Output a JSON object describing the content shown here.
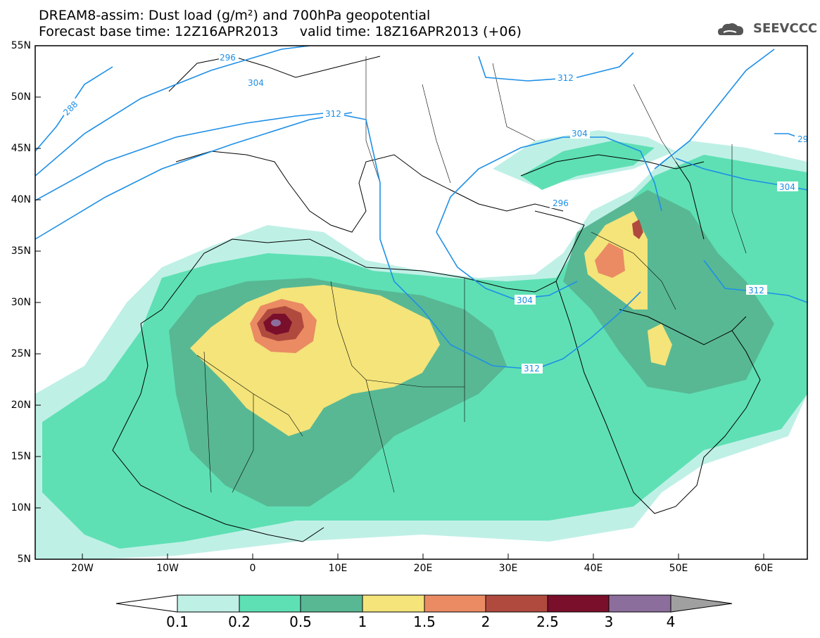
{
  "title_line1": "DREAM8-assim: Dust load (g/m²) and 700hPa geopotential",
  "title_line2": "Forecast base time: 12Z16APR2013     valid time: 18Z16APR2013 (+06)",
  "logo_text": "SEEVCCC",
  "logo_icon": "cloud-icon",
  "axes": {
    "lat_ticks": [
      "55N",
      "50N",
      "45N",
      "40N",
      "35N",
      "30N",
      "25N",
      "20N",
      "15N",
      "10N",
      "5N"
    ],
    "lon_ticks": [
      "20W",
      "10W",
      "0",
      "10E",
      "20E",
      "30E",
      "40E",
      "50E",
      "60E"
    ]
  },
  "colorbar": {
    "labels": [
      "0.1",
      "0.2",
      "0.5",
      "1",
      "1.5",
      "2",
      "2.5",
      "3",
      "4"
    ],
    "colors": [
      "#ffffff",
      "#bff0e6",
      "#5ee0b4",
      "#58b894",
      "#f4e47a",
      "#ea8b63",
      "#b04a3e",
      "#7a0f2c",
      "#8c6e9c",
      "#a0a0a0"
    ]
  },
  "contour_labels": [
    "288",
    "296",
    "304",
    "312",
    "312",
    "312",
    "304",
    "296",
    "304",
    "312",
    "304",
    "312",
    "29"
  ],
  "colors": {
    "contour": "#1e8fe6",
    "borders": "#000000",
    "dust_level1": "#bff0e6",
    "dust_level2": "#5ee0b4",
    "dust_level3": "#58b894",
    "dust_level4": "#f4e47a",
    "dust_level5": "#ea8b63",
    "dust_level6": "#b04a3e",
    "dust_level7": "#7a0f2c",
    "dust_level8": "#8c6e9c"
  }
}
